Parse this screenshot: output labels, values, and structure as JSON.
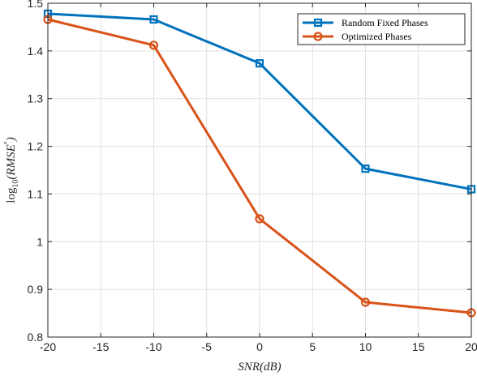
{
  "chart_data": {
    "type": "line",
    "title": "",
    "xlabel": "SNR(dB)",
    "ylabel": "log10(RMSE°)",
    "ylabel_parts": {
      "pre": "log",
      "sub": "10",
      "mid": "(RMSE",
      "sup": "°",
      "post": ")"
    },
    "xlim": [
      -20,
      20
    ],
    "ylim": [
      0.8,
      1.5
    ],
    "xticks": [
      -20,
      -15,
      -10,
      -5,
      0,
      5,
      10,
      15,
      20
    ],
    "xtick_labels": [
      "-20",
      "-15",
      "-10",
      "-5",
      "0",
      "5",
      "10",
      "15",
      "20"
    ],
    "yticks": [
      0.8,
      0.9,
      1.0,
      1.1,
      1.2,
      1.3,
      1.4,
      1.5
    ],
    "ytick_labels": [
      "0.8",
      "0.9",
      "1",
      "1.1",
      "1.2",
      "1.3",
      "1.4",
      "1.5"
    ],
    "grid": true,
    "legend_position": "top-right",
    "x": [
      -20,
      -10,
      0,
      10,
      20
    ],
    "series": [
      {
        "name": "Random Fixed Phases",
        "values": [
          1.478,
          1.466,
          1.374,
          1.153,
          1.11
        ],
        "color": "#0072BD",
        "marker": "square"
      },
      {
        "name": "Optimized Phases",
        "values": [
          1.466,
          1.412,
          1.048,
          0.873,
          0.851
        ],
        "color": "#D95319",
        "marker": "circle"
      }
    ]
  }
}
